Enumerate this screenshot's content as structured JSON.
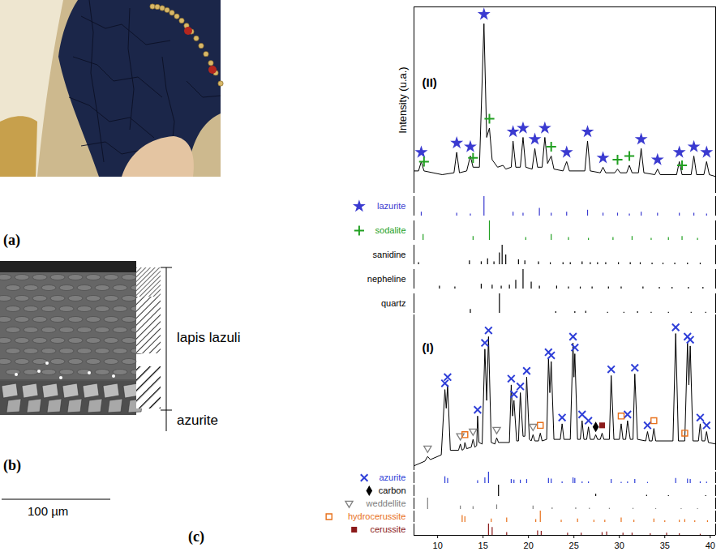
{
  "panels": {
    "a": {
      "label": "(a)"
    },
    "b": {
      "label": "(b)",
      "layers": [
        "lapis lazuli",
        "azurite"
      ],
      "scale_bar": "100 µm"
    },
    "c": {
      "label": "(c)"
    }
  },
  "chart_data": {
    "type": "line",
    "y_label": "Intensity (u.a.)",
    "xlim": [
      7.4,
      40.6
    ],
    "xticks": [
      10,
      15,
      20,
      25,
      30,
      35,
      40
    ],
    "ylim": [
      0,
      100
    ],
    "tick_labels": "x",
    "patterns": [
      {
        "name": "(II)",
        "color": "#000000",
        "x": [
          7.4,
          7.9,
          8.2,
          8.5,
          9.5,
          10.5,
          11.8,
          12.1,
          12.4,
          13.2,
          13.6,
          13.9,
          14.6,
          15.1,
          15.4,
          15.7,
          16.0,
          16.6,
          17.2,
          17.5,
          18.1,
          18.3,
          18.6,
          19.1,
          19.4,
          19.7,
          20.4,
          20.7,
          21.0,
          21.5,
          21.8,
          22.1,
          22.5,
          22.8,
          23.8,
          24.2,
          24.5,
          26.2,
          26.5,
          26.8,
          27.9,
          28.2,
          28.5,
          29.5,
          29.8,
          30.1,
          30.8,
          31.1,
          31.4,
          32.1,
          32.4,
          32.7,
          33.9,
          34.2,
          34.5,
          36.3,
          36.6,
          36.9,
          37.9,
          38.2,
          38.5,
          39.3,
          39.6,
          39.9,
          40.6
        ],
        "values": [
          12,
          12,
          17,
          12,
          11,
          10,
          11,
          22,
          11,
          12,
          20,
          14,
          14,
          91,
          30,
          35,
          18,
          14,
          15,
          13,
          14,
          28,
          14,
          14,
          30,
          14,
          13,
          24,
          14,
          14,
          30,
          16,
          20,
          13,
          12,
          17,
          12,
          12,
          28,
          12,
          11,
          14,
          11,
          11,
          13,
          11,
          11,
          15,
          11,
          11,
          24,
          11,
          10,
          13,
          10,
          10,
          17,
          10,
          10,
          20,
          10,
          10,
          17,
          10,
          9
        ],
        "references": [
          {
            "name": "lazurite",
            "color": "#3a3ad0",
            "marker": "star",
            "x": [
              8.2,
              12.1,
              13.6,
              15.1,
              18.3,
              19.4,
              21.2,
              22.5,
              24.2,
              26.5,
              28.2,
              29.8,
              31.1,
              32.4,
              34.2,
              36.6,
              38.2,
              39.6
            ],
            "values": [
              20,
              15,
              10,
              100,
              20,
              15,
              40,
              15,
              20,
              30,
              15,
              15,
              10,
              20,
              15,
              15,
              15,
              10
            ],
            "peaks": {
              "x": [
                8.2,
                12.1,
                13.6,
                15.1,
                18.3,
                19.4,
                20.7,
                21.8,
                24.2,
                26.5,
                28.2,
                32.4,
                34.2,
                36.6,
                38.2,
                39.6
              ],
              "y": [
                22,
                27,
                25,
                96,
                33,
                35,
                29,
                35,
                22,
                33,
                19,
                29,
                18,
                22,
                25,
                22
              ]
            }
          },
          {
            "name": "sodalite",
            "color": "#22a022",
            "marker": "plus",
            "x": [
              8.4,
              13.9,
              15.7,
              19.7,
              22.5,
              24.4,
              26.6,
              29.3,
              31.4,
              33.5,
              35.4,
              36.9,
              38.6
            ],
            "values": [
              30,
              20,
              100,
              15,
              30,
              15,
              10,
              15,
              20,
              10,
              15,
              20,
              10
            ],
            "peaks": {
              "x": [
                8.5,
                13.9,
                15.7,
                22.5,
                29.8,
                31.1,
                36.9
              ],
              "y": [
                17,
                19,
                40,
                25,
                18,
                20,
                15
              ]
            }
          },
          {
            "name": "sanidine",
            "color": "#000000",
            "x": [
              7.9,
              13.5,
              14.8,
              15.5,
              16.2,
              16.8,
              17.1,
              17.5,
              18.9,
              19.6,
              21.1,
              22.4,
              23.8,
              24.6,
              25.9,
              26.8,
              27.6,
              28.5,
              29.9,
              31.2,
              32.3,
              33.6,
              34.8,
              36.1,
              37.5,
              38.9
            ],
            "values": [
              10,
              20,
              15,
              30,
              15,
              60,
              100,
              50,
              25,
              20,
              15,
              10,
              10,
              10,
              15,
              10,
              10,
              10,
              10,
              10,
              10,
              8,
              8,
              8,
              8,
              8
            ]
          },
          {
            "name": "nepheline",
            "color": "#000000",
            "x": [
              10.2,
              11.9,
              14.8,
              16.0,
              17.0,
              17.9,
              18.6,
              19.4,
              20.3,
              21.2,
              23.1,
              24.4,
              25.7,
              27.0,
              28.8,
              30.2,
              32.6,
              34.4,
              35.8,
              37.6,
              39.2
            ],
            "values": [
              15,
              10,
              25,
              20,
              15,
              20,
              45,
              100,
              35,
              15,
              15,
              10,
              10,
              10,
              10,
              10,
              10,
              8,
              8,
              8,
              8
            ]
          },
          {
            "name": "quartz",
            "color": "#000000",
            "x": [
              13.6,
              16.8,
              23.0,
              25.1,
              26.3,
              28.7,
              30.5,
              32.0,
              33.5,
              35.4,
              37.9,
              39.5
            ],
            "values": [
              20,
              100,
              8,
              8,
              10,
              5,
              5,
              8,
              5,
              5,
              5,
              5
            ]
          }
        ]
      },
      {
        "name": "(I)",
        "color": "#000000",
        "x": [
          7.4,
          8.6,
          8.9,
          9.2,
          10.4,
          10.8,
          10.95,
          11.1,
          11.4,
          12.3,
          12.5,
          12.7,
          12.9,
          13.0,
          13.2,
          13.7,
          13.9,
          14.1,
          14.3,
          14.4,
          14.55,
          14.9,
          15.2,
          15.4,
          15.6,
          15.9,
          16.3,
          16.5,
          16.7,
          17.9,
          18.1,
          18.25,
          18.4,
          18.7,
          18.9,
          19.1,
          19.4,
          19.6,
          19.8,
          20.1,
          20.3,
          20.5,
          20.7,
          21.1,
          21.3,
          21.5,
          22.0,
          22.2,
          22.35,
          22.5,
          22.8,
          23.5,
          23.7,
          23.9,
          24.6,
          24.9,
          25.0,
          25.1,
          25.4,
          25.7,
          25.9,
          26.1,
          26.4,
          26.6,
          26.8,
          27.2,
          27.4,
          27.6,
          27.9,
          28.1,
          28.3,
          28.9,
          29.1,
          29.4,
          30.0,
          30.2,
          30.4,
          30.7,
          30.9,
          31.2,
          31.5,
          31.7,
          32.0,
          32.9,
          33.1,
          33.3,
          33.6,
          33.8,
          34.0,
          35.9,
          36.2,
          36.5,
          37.2,
          37.5,
          37.65,
          37.8,
          38.1,
          38.7,
          38.9,
          39.1,
          39.4,
          39.6,
          39.8,
          40.6
        ],
        "values": [
          3,
          6,
          9,
          7,
          10,
          52,
          40,
          55,
          13,
          13,
          17,
          13,
          14,
          18,
          14,
          15,
          20,
          15,
          16,
          35,
          18,
          17,
          78,
          45,
          86,
          18,
          17,
          21,
          18,
          18,
          55,
          35,
          45,
          19,
          19,
          50,
          22,
          22,
          60,
          20,
          19,
          23,
          19,
          19,
          24,
          19,
          20,
          72,
          50,
          70,
          20,
          20,
          30,
          20,
          20,
          82,
          60,
          75,
          20,
          20,
          32,
          20,
          20,
          28,
          20,
          20,
          23,
          20,
          20,
          24,
          20,
          20,
          61,
          20,
          20,
          30,
          20,
          20,
          32,
          20,
          20,
          62,
          20,
          19,
          25,
          19,
          19,
          27,
          19,
          19,
          88,
          19,
          19,
          82,
          55,
          80,
          19,
          19,
          30,
          19,
          19,
          25,
          18,
          17
        ],
        "references": [
          {
            "name": "azurite",
            "color": "#2f3fd8",
            "marker": "x",
            "x": [
              10.8,
              11.1,
              14.4,
              15.2,
              15.6,
              18.1,
              18.4,
              19.1,
              19.8,
              22.2,
              22.5,
              23.7,
              24.9,
              25.1,
              25.9,
              26.6,
              29.1,
              30.2,
              30.9,
              31.7,
              33.1,
              36.2,
              37.5,
              37.8,
              38.9,
              39.6
            ],
            "values": [
              60,
              45,
              25,
              50,
              100,
              35,
              30,
              30,
              35,
              45,
              40,
              15,
              50,
              45,
              15,
              15,
              35,
              10,
              15,
              35,
              10,
              45,
              40,
              35,
              15,
              12
            ],
            "peaks": {
              "x": [
                10.8,
                11.1,
                14.4,
                15.2,
                15.6,
                18.1,
                18.4,
                19.1,
                19.8,
                22.2,
                22.5,
                23.7,
                24.9,
                25.1,
                25.9,
                26.6,
                29.1,
                30.9,
                31.7,
                33.1,
                36.2,
                37.5,
                37.8,
                38.9,
                39.6
              ],
              "y": [
                56,
                60,
                39,
                82,
                90,
                59,
                49,
                54,
                64,
                76,
                74,
                34,
                86,
                79,
                36,
                32,
                65,
                36,
                66,
                29,
                92,
                86,
                84,
                34,
                29
              ]
            }
          },
          {
            "name": "carbon",
            "color": "#000000",
            "marker": "diamond",
            "x": [
              16.7,
              27.4,
              33.0,
              35.4,
              39.5
            ],
            "values": [
              100,
              20,
              10,
              8,
              8
            ],
            "peaks": {
              "x": [
                27.4
              ],
              "y": [
                28
              ]
            }
          },
          {
            "name": "weddellite",
            "color": "#808080",
            "marker": "triangle-down",
            "x": [
              8.9,
              12.5,
              13.9,
              16.5,
              20.5,
              22.6,
              25.2,
              26.7,
              28.9,
              31.5,
              34.0,
              36.8,
              38.6
            ],
            "values": [
              100,
              30,
              25,
              40,
              30,
              15,
              15,
              10,
              10,
              10,
              8,
              8,
              8
            ],
            "peaks": {
              "x": [
                8.9,
                12.5,
                13.9,
                16.5,
                20.5
              ],
              "y": [
                14,
                22,
                25,
                26,
                28
              ]
            }
          },
          {
            "name": "hydrocerussite",
            "color": "#e8701a",
            "marker": "square-open",
            "x": [
              12.7,
              13.0,
              15.9,
              17.6,
              20.8,
              21.3,
              23.6,
              25.4,
              27.2,
              28.4,
              30.2,
              31.6,
              33.8,
              35.0,
              36.6,
              37.2,
              38.3,
              39.7
            ],
            "values": [
              60,
              50,
              30,
              40,
              25,
              100,
              20,
              30,
              20,
              20,
              40,
              20,
              30,
              15,
              20,
              25,
              15,
              15
            ],
            "peaks": {
              "x": [
                13.0,
                21.3,
                30.2,
                33.8,
                37.2
              ],
              "y": [
                23,
                29,
                35,
                32,
                24
              ]
            }
          },
          {
            "name": "cerussite",
            "color": "#8b1a1a",
            "marker": "square",
            "x": [
              15.6,
              16.0,
              17.6,
              21.0,
              21.4,
              24.3,
              25.8,
              28.1,
              28.6,
              30.4,
              31.4,
              33.4,
              35.2,
              36.6,
              38.9
            ],
            "values": [
              100,
              70,
              25,
              40,
              35,
              20,
              20,
              25,
              30,
              20,
              20,
              15,
              20,
              15,
              10
            ],
            "peaks": {
              "x": [
                28.1
              ],
              "y": [
                29
              ]
            }
          }
        ]
      }
    ]
  }
}
